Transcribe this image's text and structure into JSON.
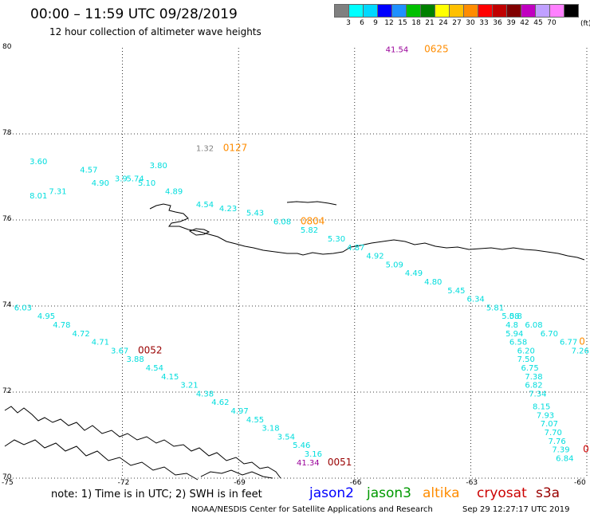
{
  "header": {
    "title": "00:00 – 11:59 UTC 09/28/2019",
    "subtitle": "12 hour collection of altimeter wave heights"
  },
  "legend": {
    "colors": [
      "#808080",
      "#00ffff",
      "#00d8ff",
      "#0000ff",
      "#1e90ff",
      "#00c000",
      "#008000",
      "#ffff00",
      "#ffc000",
      "#ff8c00",
      "#ff0000",
      "#c00000",
      "#800000",
      "#c000c0",
      "#c0a0ff",
      "#ff80ff",
      "#000000"
    ],
    "ticks": [
      "3",
      "6",
      "9",
      "12",
      "15",
      "18",
      "21",
      "24",
      "27",
      "30",
      "33",
      "36",
      "39",
      "42",
      "45",
      "70"
    ],
    "unit": "(ft)"
  },
  "axes": {
    "lat_labels": [
      "80",
      "78",
      "76",
      "74",
      "72",
      "70"
    ],
    "lon_labels": [
      "-75",
      "-72",
      "-69",
      "-66",
      "-63",
      "-60"
    ]
  },
  "map": {
    "lon_range": [
      -75,
      -60
    ],
    "lat_range": [
      70,
      80
    ],
    "lat_grid": [
      70,
      72,
      74,
      76,
      78
    ],
    "lon_grid": [
      -72,
      -69,
      -66,
      -63,
      -60
    ]
  },
  "labels": [
    {
      "text": "41.54",
      "lon": -65.2,
      "lat": 79.9,
      "color": "#990099"
    },
    {
      "text": "0625",
      "lon": -64.2,
      "lat": 79.9,
      "color": "#ff8c00"
    },
    {
      "text": "1.32",
      "lon": -70.1,
      "lat": 77.6,
      "color": "#808080"
    },
    {
      "text": "0127",
      "lon": -69.4,
      "lat": 77.6,
      "color": "#ff8c00"
    },
    {
      "text": "3.60",
      "lon": -74.4,
      "lat": 77.3,
      "color": "#00dddd"
    },
    {
      "text": "4.57",
      "lon": -73.1,
      "lat": 77.1,
      "color": "#00dddd"
    },
    {
      "text": "3.80",
      "lon": -71.3,
      "lat": 77.2,
      "color": "#00dddd"
    },
    {
      "text": "3.9",
      "lon": -72.2,
      "lat": 76.9,
      "color": "#00dddd"
    },
    {
      "text": "5.74",
      "lon": -71.9,
      "lat": 76.9,
      "color": "#00dddd"
    },
    {
      "text": "4.90",
      "lon": -72.8,
      "lat": 76.8,
      "color": "#00dddd"
    },
    {
      "text": "5.10",
      "lon": -71.6,
      "lat": 76.8,
      "color": "#00dddd"
    },
    {
      "text": "7.31",
      "lon": -73.9,
      "lat": 76.6,
      "color": "#00dddd"
    },
    {
      "text": "4.89",
      "lon": -70.9,
      "lat": 76.6,
      "color": "#00dddd"
    },
    {
      "text": "8.01",
      "lon": -74.4,
      "lat": 76.5,
      "color": "#00dddd"
    },
    {
      "text": "4.54",
      "lon": -70.1,
      "lat": 76.3,
      "color": "#00dddd"
    },
    {
      "text": "4.23",
      "lon": -69.5,
      "lat": 76.2,
      "color": "#00dddd"
    },
    {
      "text": "5.43",
      "lon": -68.8,
      "lat": 76.1,
      "color": "#00dddd"
    },
    {
      "text": "6.08",
      "lon": -68.1,
      "lat": 75.9,
      "color": "#00dddd"
    },
    {
      "text": "0804",
      "lon": -67.4,
      "lat": 75.9,
      "color": "#ff8c00"
    },
    {
      "text": "5.82",
      "lon": -67.4,
      "lat": 75.7,
      "color": "#00dddd"
    },
    {
      "text": "5.30",
      "lon": -66.7,
      "lat": 75.5,
      "color": "#00dddd"
    },
    {
      "text": "4.87",
      "lon": -66.2,
      "lat": 75.3,
      "color": "#00dddd"
    },
    {
      "text": "4.92",
      "lon": -65.7,
      "lat": 75.1,
      "color": "#00dddd"
    },
    {
      "text": "5.09",
      "lon": -65.2,
      "lat": 74.9,
      "color": "#00dddd"
    },
    {
      "text": "4.49",
      "lon": -64.7,
      "lat": 74.7,
      "color": "#00dddd"
    },
    {
      "text": "4.80",
      "lon": -64.2,
      "lat": 74.5,
      "color": "#00dddd"
    },
    {
      "text": "5.45",
      "lon": -63.6,
      "lat": 74.3,
      "color": "#00dddd"
    },
    {
      "text": "6.34",
      "lon": -63.1,
      "lat": 74.1,
      "color": "#00dddd"
    },
    {
      "text": "5.81",
      "lon": -62.6,
      "lat": 73.9,
      "color": "#00dddd"
    },
    {
      "text": "5.08",
      "lon": -62.2,
      "lat": 73.7,
      "color": "#00dddd"
    },
    {
      "text": "5.8",
      "lon": -62.0,
      "lat": 73.7,
      "color": "#00dddd"
    },
    {
      "text": "4.8",
      "lon": -62.1,
      "lat": 73.5,
      "color": "#00dddd"
    },
    {
      "text": "6.08",
      "lon": -61.6,
      "lat": 73.5,
      "color": "#00dddd"
    },
    {
      "text": "5.94",
      "lon": -62.1,
      "lat": 73.3,
      "color": "#00dddd"
    },
    {
      "text": "6.70",
      "lon": -61.2,
      "lat": 73.3,
      "color": "#00dddd"
    },
    {
      "text": "6.58",
      "lon": -62.0,
      "lat": 73.1,
      "color": "#00dddd"
    },
    {
      "text": "6.77",
      "lon": -60.7,
      "lat": 73.1,
      "color": "#00dddd"
    },
    {
      "text": "0",
      "lon": -60.2,
      "lat": 73.1,
      "color": "#ff8c00"
    },
    {
      "text": "6.20",
      "lon": -61.8,
      "lat": 72.9,
      "color": "#00dddd"
    },
    {
      "text": "7.26",
      "lon": -60.4,
      "lat": 72.9,
      "color": "#00dddd"
    },
    {
      "text": "7.50",
      "lon": -61.8,
      "lat": 72.7,
      "color": "#00dddd"
    },
    {
      "text": "6.75",
      "lon": -61.7,
      "lat": 72.5,
      "color": "#00dddd"
    },
    {
      "text": "7.38",
      "lon": -61.6,
      "lat": 72.3,
      "color": "#00dddd"
    },
    {
      "text": "6.82",
      "lon": -61.6,
      "lat": 72.1,
      "color": "#00dddd"
    },
    {
      "text": "7.34",
      "lon": -61.5,
      "lat": 71.9,
      "color": "#00dddd"
    },
    {
      "text": "8.15",
      "lon": -61.4,
      "lat": 71.6,
      "color": "#00dddd"
    },
    {
      "text": "7.93",
      "lon": -61.3,
      "lat": 71.4,
      "color": "#00dddd"
    },
    {
      "text": "7.07",
      "lon": -61.2,
      "lat": 71.2,
      "color": "#00dddd"
    },
    {
      "text": "7.70",
      "lon": -61.1,
      "lat": 71.0,
      "color": "#00dddd"
    },
    {
      "text": "7.76",
      "lon": -61.0,
      "lat": 70.8,
      "color": "#00dddd"
    },
    {
      "text": "7.39",
      "lon": -60.9,
      "lat": 70.6,
      "color": "#00dddd"
    },
    {
      "text": "6.84",
      "lon": -60.8,
      "lat": 70.4,
      "color": "#00dddd"
    },
    {
      "text": "0",
      "lon": -60.1,
      "lat": 70.6,
      "color": "#cc0000"
    },
    {
      "text": "6.03",
      "lon": -74.8,
      "lat": 73.9,
      "color": "#00dddd"
    },
    {
      "text": "4.95",
      "lon": -74.2,
      "lat": 73.7,
      "color": "#00dddd"
    },
    {
      "text": "4.78",
      "lon": -73.8,
      "lat": 73.5,
      "color": "#00dddd"
    },
    {
      "text": "4.72",
      "lon": -73.3,
      "lat": 73.3,
      "color": "#00dddd"
    },
    {
      "text": "4.71",
      "lon": -72.8,
      "lat": 73.1,
      "color": "#00dddd"
    },
    {
      "text": "3.67",
      "lon": -72.3,
      "lat": 72.9,
      "color": "#00dddd"
    },
    {
      "text": "0052",
      "lon": -71.6,
      "lat": 72.9,
      "color": "#990000"
    },
    {
      "text": "3.88",
      "lon": -71.9,
      "lat": 72.7,
      "color": "#00dddd"
    },
    {
      "text": "4.54",
      "lon": -71.4,
      "lat": 72.5,
      "color": "#00dddd"
    },
    {
      "text": "4.15",
      "lon": -71.0,
      "lat": 72.3,
      "color": "#00dddd"
    },
    {
      "text": "3.21",
      "lon": -70.5,
      "lat": 72.1,
      "color": "#00dddd"
    },
    {
      "text": "4.38",
      "lon": -70.1,
      "lat": 71.9,
      "color": "#00dddd"
    },
    {
      "text": "4.62",
      "lon": -69.7,
      "lat": 71.7,
      "color": "#00dddd"
    },
    {
      "text": "4.97",
      "lon": -69.2,
      "lat": 71.5,
      "color": "#00dddd"
    },
    {
      "text": "4.55",
      "lon": -68.8,
      "lat": 71.3,
      "color": "#00dddd"
    },
    {
      "text": "3.18",
      "lon": -68.4,
      "lat": 71.1,
      "color": "#00dddd"
    },
    {
      "text": "3.54",
      "lon": -68.0,
      "lat": 70.9,
      "color": "#00dddd"
    },
    {
      "text": "5.46",
      "lon": -67.6,
      "lat": 70.7,
      "color": "#00dddd"
    },
    {
      "text": "3.16",
      "lon": -67.3,
      "lat": 70.5,
      "color": "#00dddd"
    },
    {
      "text": "41.34",
      "lon": -67.5,
      "lat": 70.3,
      "color": "#990099"
    },
    {
      "text": "0051",
      "lon": -66.7,
      "lat": 70.3,
      "color": "#990000"
    }
  ],
  "footer": {
    "note": "note: 1) Time is in UTC; 2) SWH is in feet",
    "satellites": [
      {
        "name": "jason2",
        "color": "#0000ff"
      },
      {
        "name": "jason3",
        "color": "#009900"
      },
      {
        "name": "altika",
        "color": "#ff8c00"
      },
      {
        "name": "cryosat",
        "color": "#cc0000"
      },
      {
        "name": "s3a",
        "color": "#990000"
      }
    ],
    "credit": "NOAA/NESDIS Center for Satellite Applications and Research",
    "timestamp": "Sep 29 12:27:17 UTC 2019"
  }
}
